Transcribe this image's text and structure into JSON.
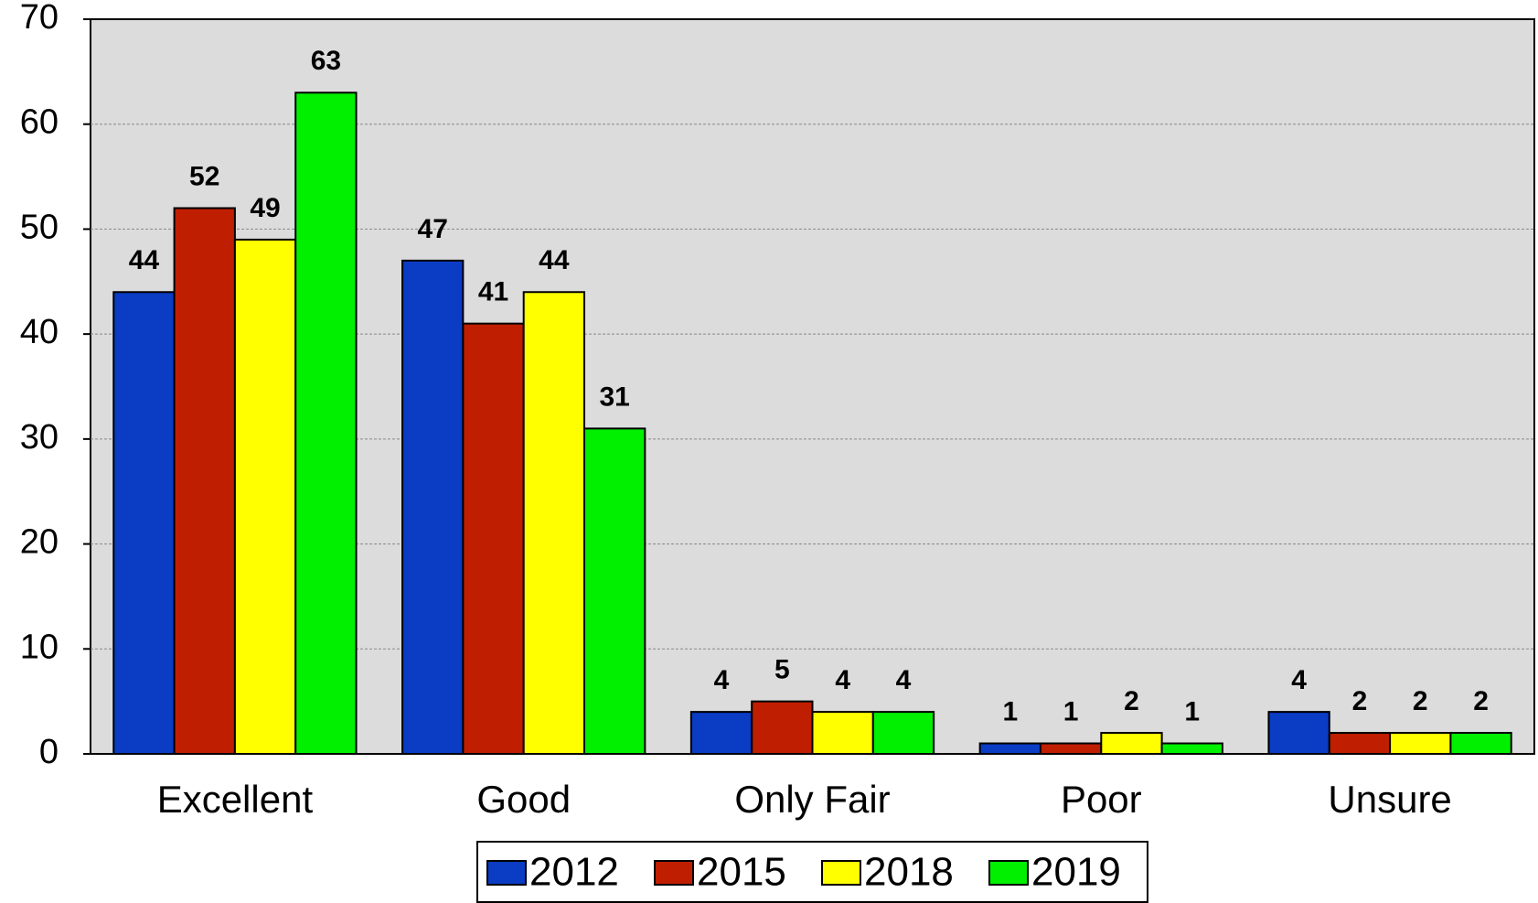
{
  "chart_data": {
    "type": "bar",
    "categories": [
      "Excellent",
      "Good",
      "Only Fair",
      "Poor",
      "Unsure"
    ],
    "series": [
      {
        "name": "2012",
        "color": "#0a3cc4",
        "values": [
          44,
          47,
          4,
          1,
          4
        ]
      },
      {
        "name": "2015",
        "color": "#c01e00",
        "values": [
          52,
          41,
          5,
          1,
          2
        ]
      },
      {
        "name": "2018",
        "color": "#ffff00",
        "values": [
          49,
          44,
          4,
          2,
          2
        ]
      },
      {
        "name": "2019",
        "color": "#00f000",
        "values": [
          63,
          31,
          4,
          1,
          2
        ]
      }
    ],
    "ylim": [
      0,
      70
    ],
    "yticks": [
      0,
      10,
      20,
      30,
      40,
      50,
      60,
      70
    ],
    "grid": true,
    "legend": "bottom"
  }
}
